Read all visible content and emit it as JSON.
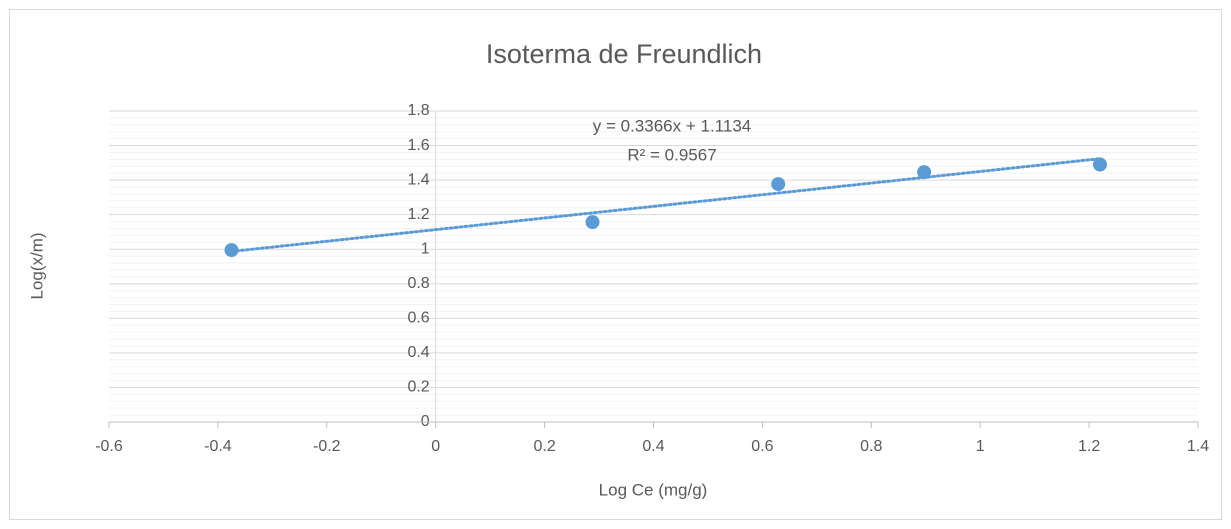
{
  "chart_data": {
    "type": "scatter",
    "title": "Isoterma de Freundlich",
    "x_label": "Log Ce (mg/g)",
    "y_label": "Log(x/m)",
    "series": [
      {
        "name": "Log(x/m)",
        "color": "#5b9bd5",
        "x": [
          -0.375,
          0.288,
          0.629,
          0.897,
          1.22
        ],
        "values": [
          0.995,
          1.157,
          1.377,
          1.446,
          1.49
        ]
      }
    ],
    "trendline": {
      "slope": 0.3366,
      "intercept": 1.1134,
      "equation": "y = 0.3366x + 1.1134",
      "r_squared": "R² = 0.9567"
    },
    "xlim": [
      -0.6,
      1.4
    ],
    "xticks": [
      -0.6,
      -0.4,
      -0.2,
      0,
      0.2,
      0.4,
      0.6,
      0.8,
      1,
      1.2,
      1.4
    ],
    "ylim": [
      0,
      1.8
    ],
    "yticks": [
      0,
      0.2,
      0.4,
      0.6,
      0.8,
      1,
      1.2,
      1.4,
      1.6,
      1.8
    ],
    "grid": true,
    "minor_grid": true
  }
}
